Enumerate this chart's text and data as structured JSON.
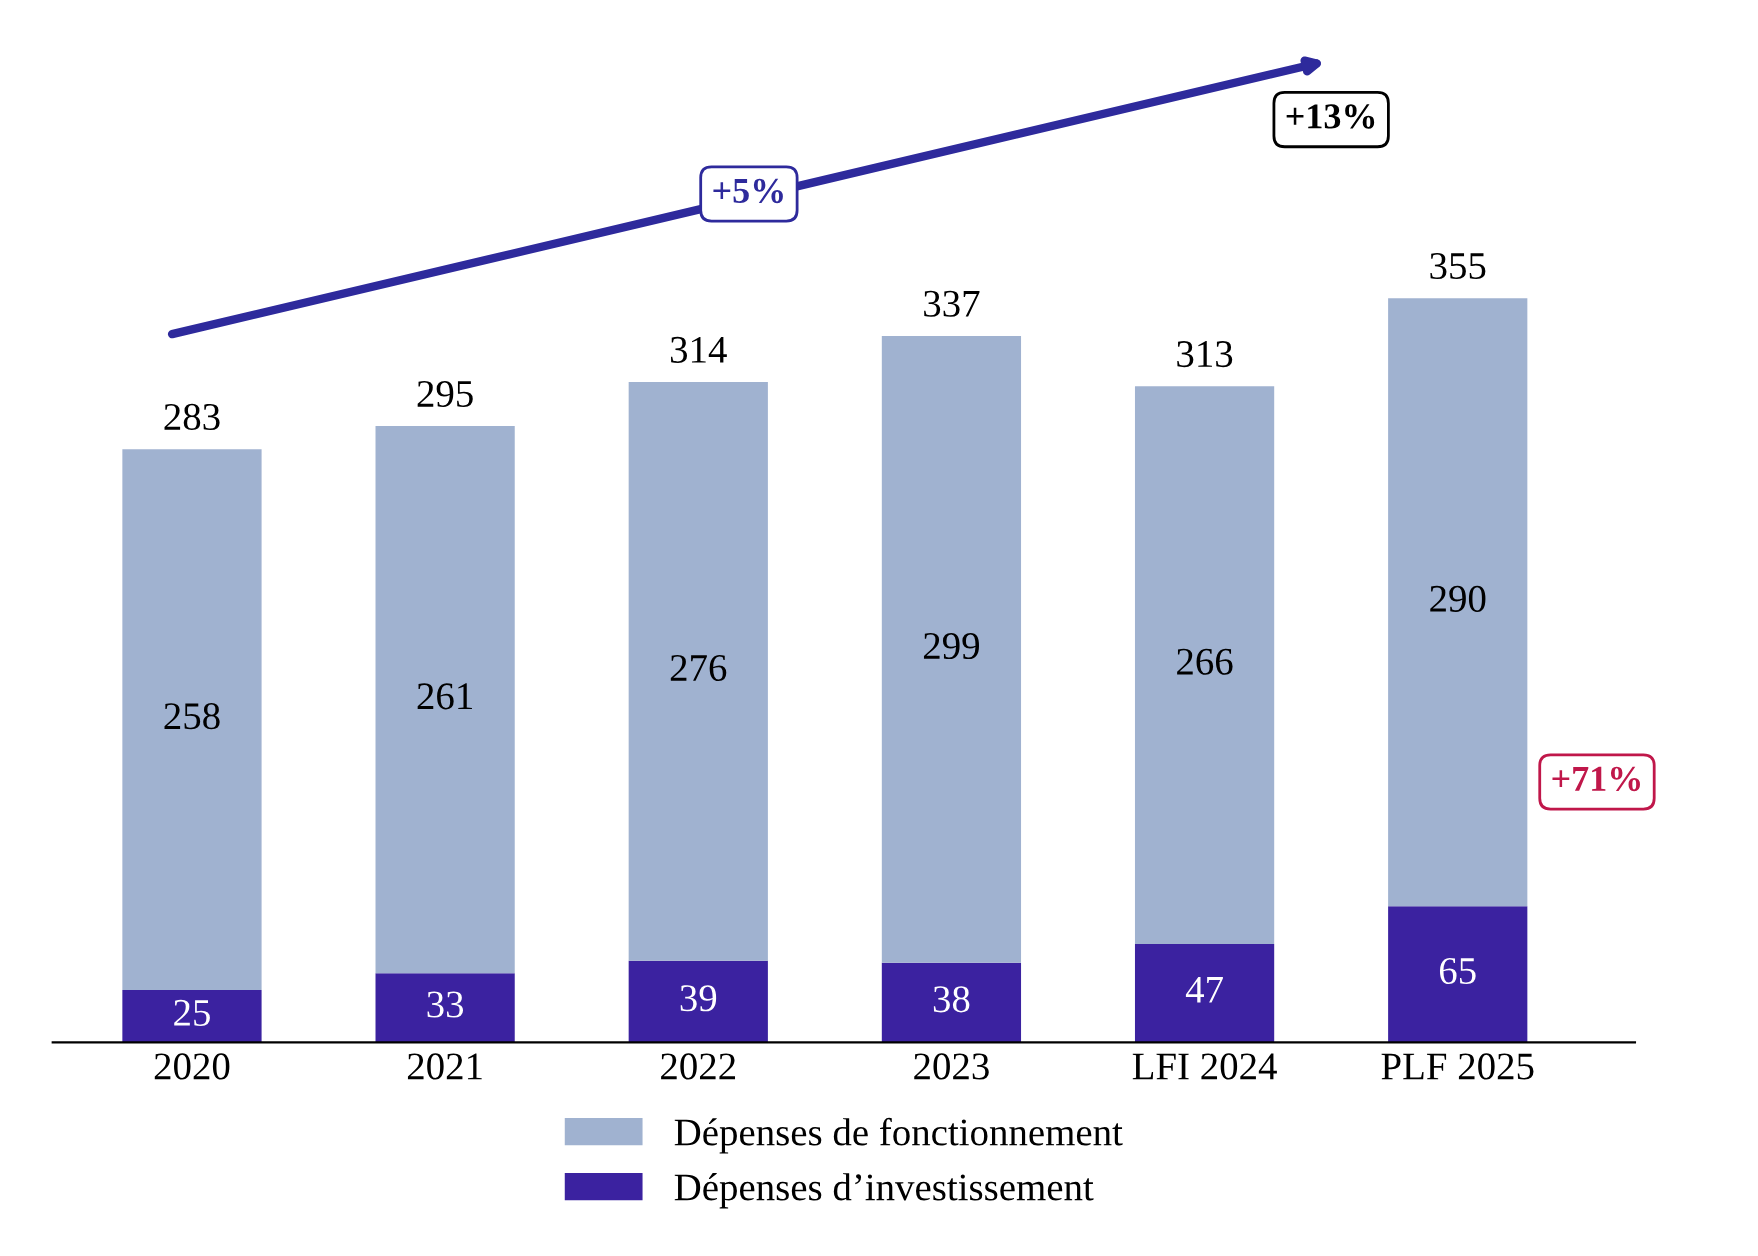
{
  "chart_data": {
    "type": "bar",
    "stacked": true,
    "categories": [
      "2020",
      "2021",
      "2022",
      "2023",
      "LFI 2024",
      "PLF 2025"
    ],
    "series": [
      {
        "name": "Dépenses d’investissement",
        "color": "#3b22a0",
        "values": [
          25,
          33,
          39,
          38,
          47,
          65
        ]
      },
      {
        "name": "Dépenses de fonctionnement",
        "color": "#a0b2d0",
        "values": [
          258,
          261,
          276,
          299,
          266,
          290
        ]
      }
    ],
    "data_labels": true,
    "totals": [
      "283",
      "295",
      "314",
      "337",
      "313",
      "355"
    ],
    "annotations": [
      "+5%",
      "+13%",
      "+71%"
    ],
    "legend": "bottom",
    "grid": false
  }
}
